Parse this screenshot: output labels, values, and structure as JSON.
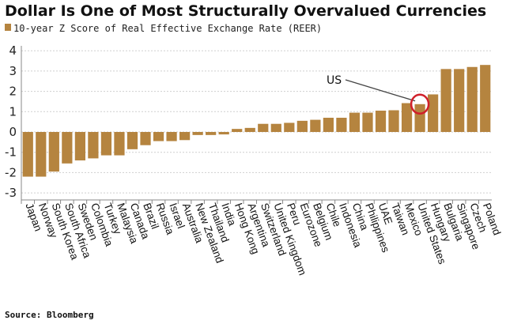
{
  "chart_data": {
    "type": "bar",
    "title": "Dollar Is One of Most Structurally Overvalued Currencies",
    "legend": [
      {
        "name": "10-year Z Score of Real Effective Exchange Rate (REER)",
        "color": "#b5843f"
      }
    ],
    "legend_placement": "top-left",
    "categories": [
      "Japan",
      "Norway",
      "South Korea",
      "South Africa",
      "Sweden",
      "Colombia",
      "Turkey",
      "Malaysia",
      "Canada",
      "Brazil",
      "Russia",
      "Israel",
      "Australia",
      "New Zealand",
      "Thailand",
      "India",
      "Hong Kong",
      "Argentina",
      "Switzerland",
      "United Kingdom",
      "Peru",
      "Eurozone",
      "Belgium",
      "Chile",
      "Indonesia",
      "China",
      "Philippines",
      "UAE",
      "Taiwan",
      "Mexico",
      "United States",
      "Hungary",
      "Bulgaria",
      "Singapore",
      "Czech",
      "Poland"
    ],
    "values": [
      -2.2,
      -2.2,
      -1.95,
      -1.55,
      -1.4,
      -1.3,
      -1.15,
      -1.15,
      -0.85,
      -0.65,
      -0.45,
      -0.45,
      -0.4,
      -0.15,
      -0.15,
      -0.12,
      0.15,
      0.2,
      0.4,
      0.4,
      0.45,
      0.55,
      0.6,
      0.7,
      0.7,
      0.95,
      0.95,
      1.05,
      1.07,
      1.42,
      1.37,
      1.85,
      3.1,
      3.1,
      3.2,
      3.3
    ],
    "ylim": [
      -3,
      4
    ],
    "yticks": [
      4,
      3,
      2,
      1,
      0,
      -1,
      -2,
      -3
    ],
    "grid": true,
    "bar_color": "#b5843f",
    "annotation": {
      "text": "US",
      "target": "United States",
      "circle_color": "#d0202a"
    },
    "source": "Source: Bloomberg"
  }
}
